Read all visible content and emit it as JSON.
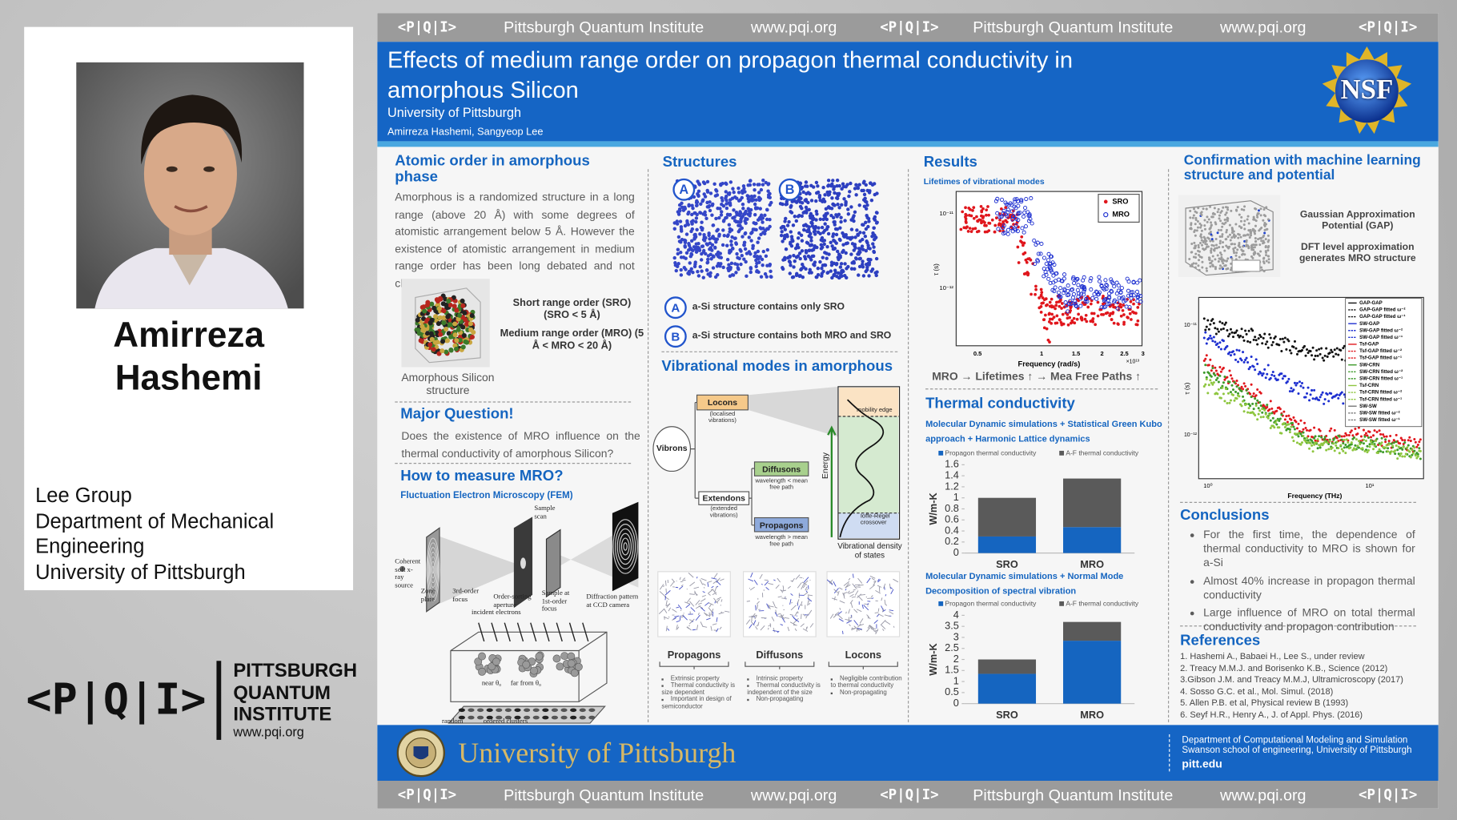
{
  "banner": {
    "logo": "<P|Q|I>",
    "name": "Pittsburgh Quantum Institute",
    "url": "www.pqi.org"
  },
  "profile": {
    "name": "Amirreza Hashemi",
    "affiliation": [
      "Lee Group",
      "Department of Mechanical Engineering",
      "University of Pittsburgh"
    ],
    "logo": {
      "mark": "<P|Q|I>",
      "lines": [
        "PITTSBURGH",
        "QUANTUM",
        "INSTITUTE"
      ],
      "url": "www.pqi.org"
    }
  },
  "header": {
    "title": "Effects of medium range order on propagon thermal conductivity in amorphous Silicon",
    "institution": "University of Pittsburgh",
    "authors": "Amirreza Hashemi, Sangyeop Lee",
    "sponsor": "NSF"
  },
  "atomic_order": {
    "title": "Atomic order in amorphous phase",
    "body": "Amorphous is a randomized structure in a long range (above 20 Å) with some degrees of atomistic arrangement below 5 Å. However the existence of atomistic arrangement in medium range order has been long debated and not clear to this day.",
    "caption": "Amorphous Silicon structure",
    "sro": "Short range order (SRO) (SRO < 5 Å)",
    "mro": "Medium range order (MRO) (5 Å < MRO < 20 Å)"
  },
  "question": {
    "title": "Major Question!",
    "body": "Does the existence of MRO influence on the thermal conductivity of amorphous Silicon?"
  },
  "measure": {
    "title": "How to measure MRO?",
    "method": "Fluctuation Electron Microscopy (FEM)",
    "setup_labels": [
      "Sample scan",
      "Coherent soft x-ray source",
      "Zone plate",
      "3rd-order focus",
      "Order-sorting aperture",
      "Sample at 1st-order focus",
      "Diffraction pattern at CCD camera"
    ],
    "sample_labels": [
      "incident electrons",
      "near θ₀",
      "far from θ₀",
      "random",
      "ordered clusters"
    ]
  },
  "structures": {
    "title": "Structures",
    "items": [
      {
        "tag": "A",
        "text": "a-Si structure contains only SRO"
      },
      {
        "tag": "B",
        "text": "a-Si structure contains both MRO and SRO"
      }
    ]
  },
  "vibrational": {
    "title": "Vibrational modes in amorphous",
    "diagram": {
      "vibrons": "Vibrons",
      "locons": "Locons",
      "locons_note": "(localised vibrations)",
      "extendons": "Extendons",
      "extendons_note": "(extended vibrations)",
      "diffusons": "Diffusons",
      "diffusons_note": "wavelength < mean free path",
      "propagons": "Propagons",
      "propagons_note": "wavelength > mean free path",
      "energy": "Energy",
      "mobility": "mobility edge",
      "ioffe": "Ioffe-Regel crossover",
      "dos": "Vibrational density of states"
    },
    "panels": [
      {
        "name": "Propagons",
        "points": [
          "Extrinsic property",
          "Thermal conductivity is size dependent",
          "Important in design of semiconductor"
        ]
      },
      {
        "name": "Diffusons",
        "points": [
          "Intrinsic property",
          "Thermal conductivity is independent of the size",
          "Non-propagating"
        ]
      },
      {
        "name": "Locons",
        "points": [
          "Negligible contribution to thermal conductivity",
          "Non-propagating"
        ]
      }
    ]
  },
  "results": {
    "title": "Results",
    "subtitle": "Lifetimes of vibrational modes",
    "legend": [
      "SRO",
      "MRO"
    ],
    "ylabel": "τ (s)",
    "yticks": [
      "10⁻¹¹",
      "10⁻¹²"
    ],
    "xlabel": "Frequency (rad/s)",
    "xticks": [
      "0.5",
      "1",
      "1.5",
      "2",
      "2.5",
      "3"
    ],
    "xscale": "×10¹³",
    "finding": "MRO → Lifetimes ↑  → Mea Free Paths ↑"
  },
  "thermal": {
    "title": "Thermal conductivity",
    "methods": [
      "Molecular Dynamic simulations + Statistical Green Kubo approach + Harmonic Lattice dynamics",
      "Molecular Dynamic simulations + Normal Mode Decomposition of spectral vibration"
    ]
  },
  "chart_data": [
    {
      "type": "bar",
      "stacked": true,
      "categories": [
        "SRO",
        "MRO"
      ],
      "ylabel": "W/m-K",
      "series": [
        {
          "name": "Propagon thermal conductivity",
          "color": "#1565c0",
          "values": [
            0.3,
            0.47
          ]
        },
        {
          "name": "A-F thermal conductivity",
          "color": "#5a5a5a",
          "values": [
            0.7,
            0.88
          ]
        }
      ],
      "ylim": [
        0,
        1.6
      ],
      "yticks": [
        0,
        0.2,
        0.4,
        0.6,
        0.8,
        1,
        1.2,
        1.4,
        1.6
      ]
    },
    {
      "type": "bar",
      "stacked": true,
      "categories": [
        "SRO",
        "MRO"
      ],
      "ylabel": "W/m-K",
      "series": [
        {
          "name": "Propagon thermal conductivity",
          "color": "#1565c0",
          "values": [
            1.35,
            2.85
          ]
        },
        {
          "name": "A-F thermal conductivity",
          "color": "#5a5a5a",
          "values": [
            0.65,
            0.85
          ]
        }
      ],
      "ylim": [
        0,
        4
      ],
      "yticks": [
        0,
        0.5,
        1,
        1.5,
        2,
        2.5,
        3,
        3.5,
        4
      ]
    }
  ],
  "ml": {
    "title": "Confirmation with machine learning structure and potential",
    "gap": "Gaussian Approximation Potential (GAP)",
    "dft": "DFT level approximation generates MRO structure",
    "legend": [
      "GAP-GAP",
      "GAP-GAP fitted ω⁻²",
      "GAP-GAP fitted ω⁻¹",
      "SW-GAP",
      "SW-GAP fitted ω⁻²",
      "SW-GAP fitted ω⁻¹",
      "Tsf-GAP",
      "Tsf-GAP fitted ω⁻²",
      "Tsf-GAP fitted ω⁻¹",
      "SW-CRN",
      "SW-CRN fitted ω⁻²",
      "SW-CRN fitted ω⁻¹",
      "Tsf-CRN",
      "Tsf-CRN fitted ω⁻²",
      "Tsf-CRN fitted ω⁻¹",
      "SW-SW",
      "SW-SW fitted ω⁻²",
      "SW-SW fitted ω⁻¹"
    ],
    "ylabel": "τ (s)",
    "yticks": [
      "10⁻¹¹",
      "10⁻¹²"
    ],
    "xticks": [
      "10⁰",
      "10¹"
    ],
    "xlabel": "Frequency (THz)"
  },
  "conclusions": {
    "title": "Conclusions",
    "items": [
      "For the first time, the dependence of thermal conductivity to MRO is shown for a-Si",
      "Almost 40% increase in propagon thermal conductivity",
      "Large influence of MRO on total thermal conductivity and propagon contribution"
    ]
  },
  "references": {
    "title": "References",
    "items": [
      "1.  Hashemi A., Babaei H., Lee S., under review",
      "2.  Treacy M.M.J. and Borisenko K.B., Science (2012)",
      "3.Gibson J.M. and Treacy M.M.J, Ultramicroscopy (2017)",
      "4.  Sosso G.C. et al., Mol. Simul. (2018)",
      "5.  Allen P.B. et al, Physical review B (1993)",
      "6.  Seyf H.R., Henry A., J. of Appl. Phys. (2016)"
    ]
  },
  "footer": {
    "university": "University of Pittsburgh",
    "department": "Department of Computational Modeling and Simulation",
    "school": "Swanson school of engineering, University of Pittsburgh",
    "site": "pitt.edu"
  }
}
